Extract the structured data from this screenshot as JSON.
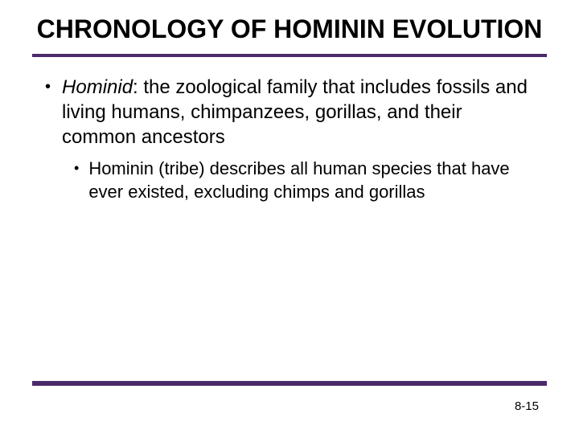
{
  "title": "CHRONOLOGY OF HOMININ EVOLUTION",
  "bullets": {
    "level1": {
      "term": "Hominid",
      "rest": ": the zoological family that includes fossils and living humans, chimpanzees, gorillas, and their common ancestors"
    },
    "level2": {
      "text": "Hominin (tribe) describes all human species that have ever existed, excluding chimps and gorillas"
    }
  },
  "pageNumber": "8-15",
  "colors": {
    "rule": "#4b2a6b",
    "background": "#ffffff",
    "text": "#000000"
  },
  "typography": {
    "title_fontsize": 32,
    "body_fontsize": 24,
    "sub_fontsize": 22,
    "pagenum_fontsize": 15,
    "font_family": "Arial"
  }
}
